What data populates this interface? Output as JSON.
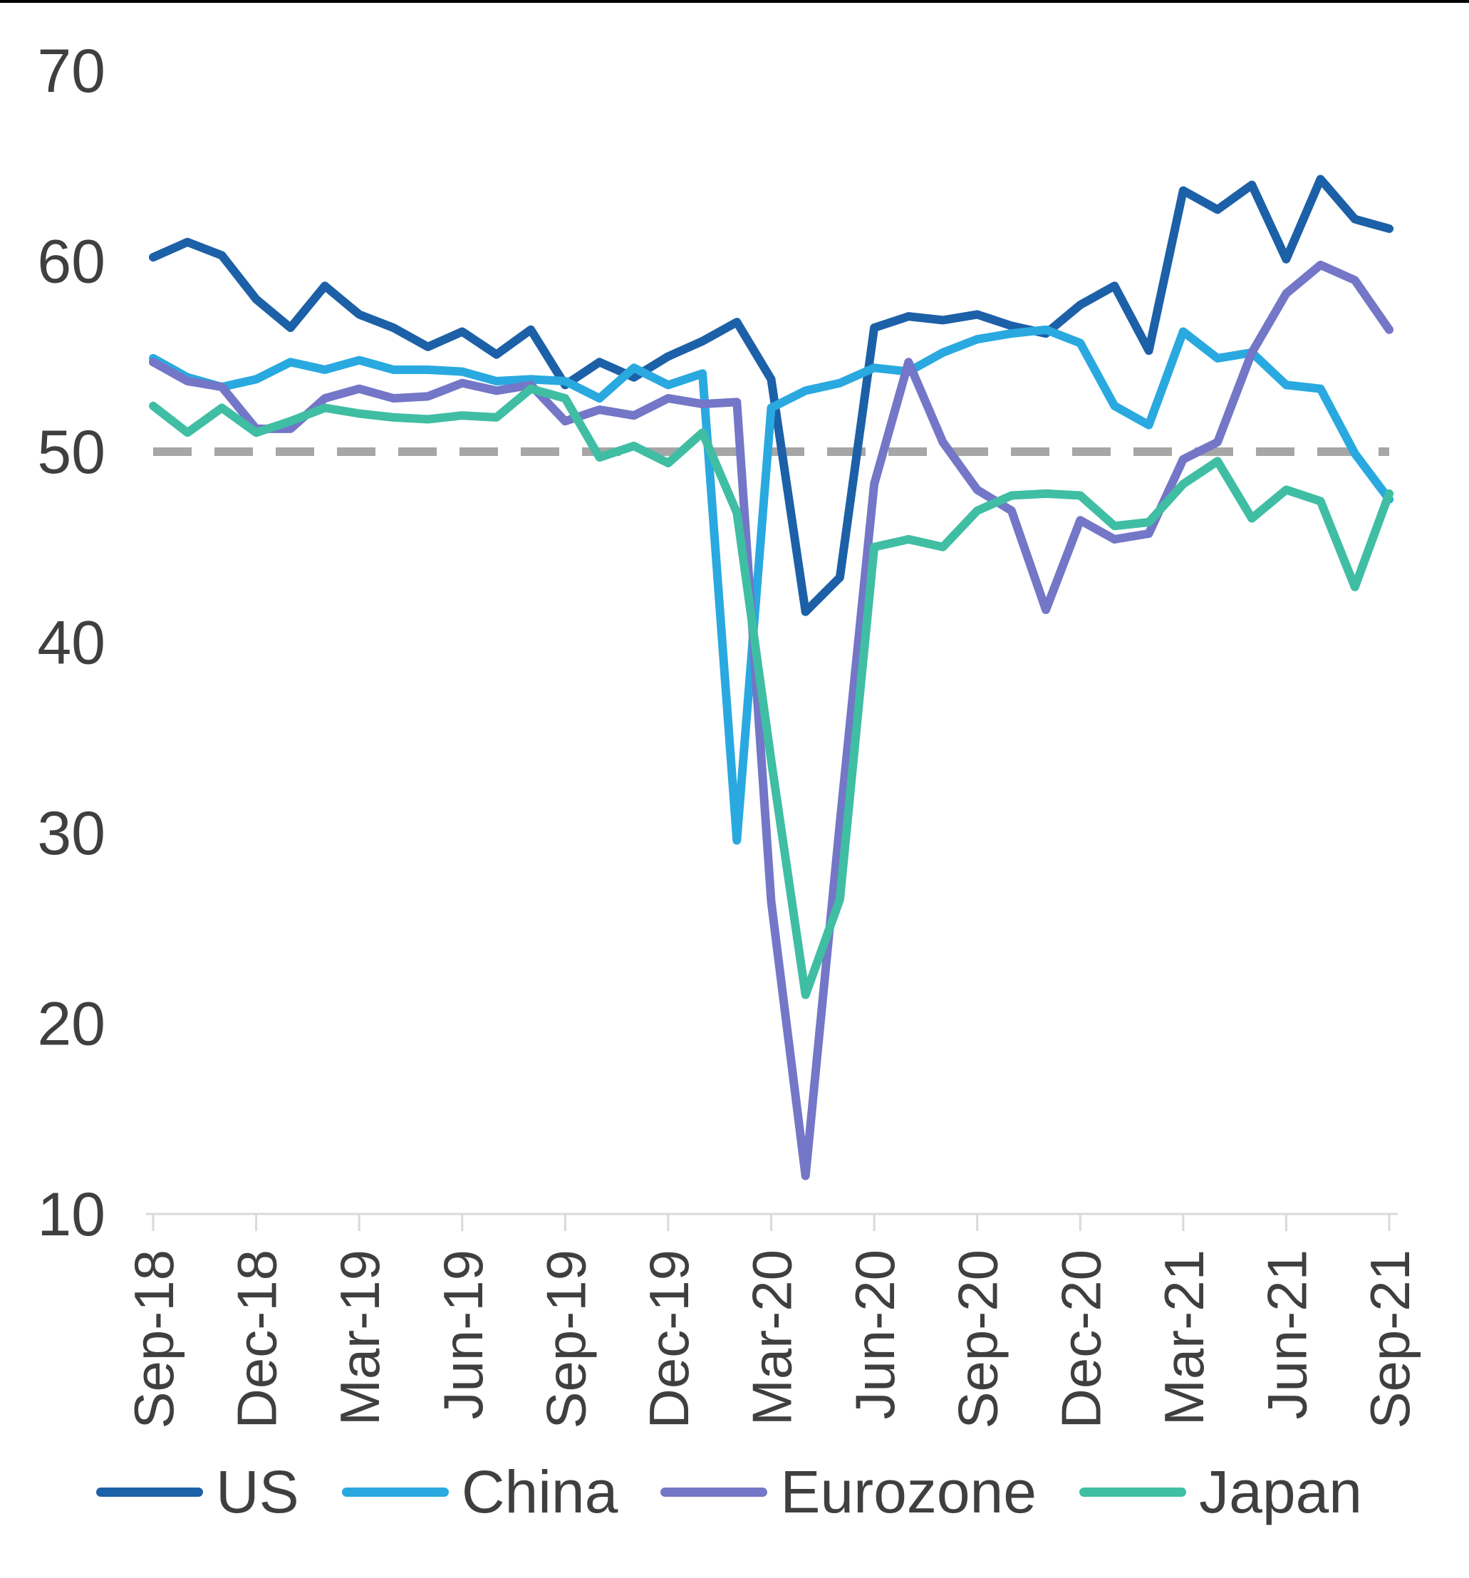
{
  "chart_data": {
    "type": "line",
    "title": "",
    "xlabel": "",
    "ylabel": "",
    "ylim": [
      10,
      70
    ],
    "y_ticks": [
      10,
      20,
      30,
      40,
      50,
      60,
      70
    ],
    "grid": false,
    "legend_position": "bottom",
    "axis": {
      "label_color": "#3f3f3f",
      "line_color": "#d9d9d9"
    },
    "reference_line": {
      "value": 50,
      "style": "dashed",
      "color": "#a6a6a6"
    },
    "x": [
      "Sep-18",
      "Oct-18",
      "Nov-18",
      "Dec-18",
      "Jan-19",
      "Feb-19",
      "Mar-19",
      "Apr-19",
      "May-19",
      "Jun-19",
      "Jul-19",
      "Aug-19",
      "Sep-19",
      "Oct-19",
      "Nov-19",
      "Dec-19",
      "Jan-20",
      "Feb-20",
      "Mar-20",
      "Apr-20",
      "May-20",
      "Jun-20",
      "Jul-20",
      "Aug-20",
      "Sep-20",
      "Oct-20",
      "Nov-20",
      "Dec-20",
      "Jan-21",
      "Feb-21",
      "Mar-21",
      "Apr-21",
      "May-21",
      "Jun-21",
      "Jul-21",
      "Aug-21",
      "Sep-21"
    ],
    "x_tick_labels": [
      "Sep-18",
      "Dec-18",
      "Mar-19",
      "Jun-19",
      "Sep-19",
      "Dec-19",
      "Mar-20",
      "Jun-20",
      "Sep-20",
      "Dec-20",
      "Mar-21",
      "Jun-21",
      "Sep-21"
    ],
    "series": [
      {
        "name": "US",
        "color": "#1c60a8",
        "values": [
          60.2,
          61.0,
          60.3,
          58.0,
          56.5,
          58.7,
          57.2,
          56.5,
          55.5,
          56.3,
          55.1,
          56.4,
          53.5,
          54.7,
          53.9,
          55.0,
          55.8,
          56.8,
          53.8,
          41.6,
          43.4,
          56.5,
          57.1,
          56.9,
          57.2,
          56.6,
          56.2,
          57.7,
          58.7,
          55.3,
          63.7,
          62.7,
          64.0,
          60.1,
          64.3,
          62.2,
          61.7
        ]
      },
      {
        "name": "China",
        "color": "#29a9e0",
        "values": [
          54.9,
          53.9,
          53.4,
          53.8,
          54.7,
          54.3,
          54.8,
          54.3,
          54.3,
          54.2,
          53.7,
          53.8,
          53.7,
          52.8,
          54.4,
          53.5,
          54.1,
          29.6,
          52.3,
          53.2,
          53.6,
          54.4,
          54.2,
          55.2,
          55.9,
          56.2,
          56.4,
          55.7,
          52.4,
          51.4,
          56.3,
          54.9,
          55.2,
          53.5,
          53.3,
          49.9,
          47.5
        ]
      },
      {
        "name": "Eurozone",
        "color": "#7476c7",
        "values": [
          54.7,
          53.7,
          53.4,
          51.2,
          51.2,
          52.8,
          53.3,
          52.8,
          52.9,
          53.6,
          53.2,
          53.5,
          51.6,
          52.2,
          51.9,
          52.8,
          52.5,
          52.6,
          26.4,
          12.0,
          30.5,
          48.3,
          54.7,
          50.5,
          48.0,
          46.9,
          41.7,
          46.4,
          45.4,
          45.7,
          49.6,
          50.5,
          55.2,
          58.3,
          59.8,
          59.0,
          56.4
        ]
      },
      {
        "name": "Japan",
        "color": "#3fbea3",
        "values": [
          52.4,
          51.0,
          52.3,
          51.0,
          51.6,
          52.3,
          52.0,
          51.8,
          51.7,
          51.9,
          51.8,
          53.3,
          52.8,
          49.7,
          50.3,
          49.4,
          51.0,
          46.8,
          33.8,
          21.5,
          26.5,
          45.0,
          45.4,
          45.0,
          46.9,
          47.7,
          47.8,
          47.7,
          46.1,
          46.3,
          48.3,
          49.5,
          46.5,
          48.0,
          47.4,
          42.9,
          47.8
        ]
      }
    ]
  }
}
